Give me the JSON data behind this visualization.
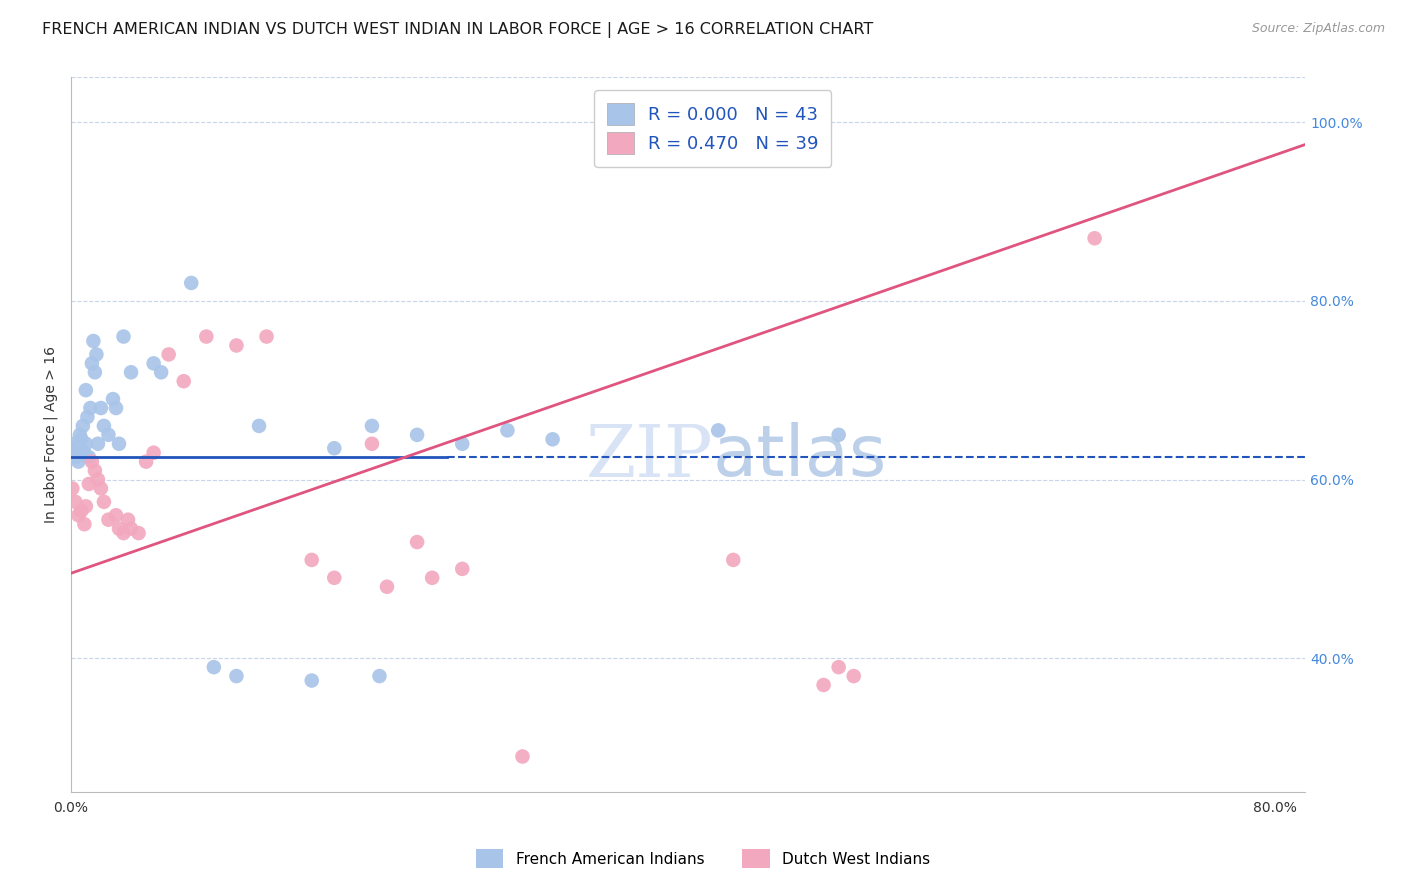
{
  "title": "FRENCH AMERICAN INDIAN VS DUTCH WEST INDIAN IN LABOR FORCE | AGE > 16 CORRELATION CHART",
  "source": "Source: ZipAtlas.com",
  "ylabel": "In Labor Force | Age > 16",
  "xlim": [
    0.0,
    0.82
  ],
  "ylim": [
    0.25,
    1.05
  ],
  "xticks": [
    0.0,
    0.1,
    0.2,
    0.3,
    0.4,
    0.5,
    0.6,
    0.7,
    0.8
  ],
  "yticks": [
    0.4,
    0.6,
    0.8,
    1.0
  ],
  "yticklabels": [
    "40.0%",
    "60.0%",
    "80.0%",
    "100.0%"
  ],
  "blue_color": "#a8c4e8",
  "pink_color": "#f2a8bf",
  "blue_line_color": "#2255bb",
  "pink_line_color": "#e05580",
  "blue_R": "0.000",
  "blue_N": "43",
  "pink_R": "0.470",
  "pink_N": "39",
  "blue_scatter_x": [
    0.001,
    0.002,
    0.003,
    0.004,
    0.005,
    0.006,
    0.007,
    0.008,
    0.009,
    0.01,
    0.01,
    0.011,
    0.012,
    0.013,
    0.014,
    0.015,
    0.016,
    0.017,
    0.018,
    0.02,
    0.022,
    0.025,
    0.028,
    0.03,
    0.032,
    0.035,
    0.04,
    0.055,
    0.06,
    0.08,
    0.095,
    0.11,
    0.125,
    0.16,
    0.175,
    0.2,
    0.205,
    0.23,
    0.26,
    0.29,
    0.32,
    0.43,
    0.51
  ],
  "blue_scatter_y": [
    0.635,
    0.64,
    0.625,
    0.63,
    0.62,
    0.65,
    0.645,
    0.66,
    0.63,
    0.64,
    0.7,
    0.67,
    0.625,
    0.68,
    0.73,
    0.755,
    0.72,
    0.74,
    0.64,
    0.68,
    0.66,
    0.65,
    0.69,
    0.68,
    0.64,
    0.76,
    0.72,
    0.73,
    0.72,
    0.82,
    0.39,
    0.38,
    0.66,
    0.375,
    0.635,
    0.66,
    0.38,
    0.65,
    0.64,
    0.655,
    0.645,
    0.655,
    0.65
  ],
  "pink_scatter_x": [
    0.001,
    0.003,
    0.005,
    0.007,
    0.009,
    0.01,
    0.012,
    0.014,
    0.016,
    0.018,
    0.02,
    0.022,
    0.025,
    0.03,
    0.032,
    0.035,
    0.038,
    0.04,
    0.045,
    0.05,
    0.055,
    0.065,
    0.075,
    0.09,
    0.11,
    0.13,
    0.16,
    0.175,
    0.2,
    0.21,
    0.23,
    0.24,
    0.26,
    0.3,
    0.44,
    0.5,
    0.51,
    0.52,
    0.68
  ],
  "pink_scatter_y": [
    0.59,
    0.575,
    0.56,
    0.565,
    0.55,
    0.57,
    0.595,
    0.62,
    0.61,
    0.6,
    0.59,
    0.575,
    0.555,
    0.56,
    0.545,
    0.54,
    0.555,
    0.545,
    0.54,
    0.62,
    0.63,
    0.74,
    0.71,
    0.76,
    0.75,
    0.76,
    0.51,
    0.49,
    0.64,
    0.48,
    0.53,
    0.49,
    0.5,
    0.29,
    0.51,
    0.37,
    0.39,
    0.38,
    0.87
  ],
  "blue_trendline_x": [
    0.0,
    0.82
  ],
  "blue_trendline_y": [
    0.625,
    0.625
  ],
  "pink_trendline_x": [
    0.0,
    0.82
  ],
  "pink_trendline_y": [
    0.495,
    0.975
  ],
  "marker_size": 110,
  "title_fontsize": 11.5,
  "axis_label_fontsize": 10,
  "tick_fontsize": 10,
  "legend_fontsize": 13,
  "grid_color": "#c8d4e8",
  "background_color": "#ffffff",
  "right_ytick_color": "#4488dd",
  "xtick_label_color": "#333333"
}
